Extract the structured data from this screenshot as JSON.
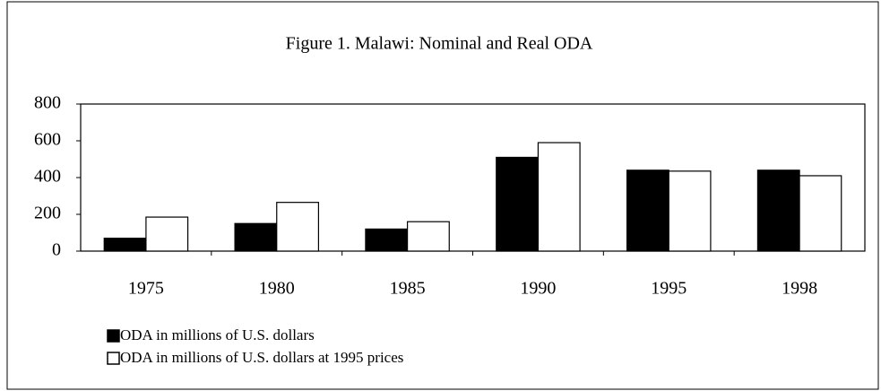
{
  "chart_data": {
    "type": "bar",
    "title": "Figure 1. Malawi: Nominal and Real ODA",
    "categories": [
      "1975",
      "1980",
      "1985",
      "1990",
      "1995",
      "1998"
    ],
    "series": [
      {
        "name": "ODA in millions of U.S. dollars",
        "color": "#000000",
        "values": [
          70,
          150,
          120,
          510,
          440,
          440
        ]
      },
      {
        "name": "ODA in millions of U.S. dollars at 1995 prices",
        "color": "#ffffff",
        "values": [
          185,
          265,
          160,
          590,
          435,
          410
        ]
      }
    ],
    "ylim": [
      0,
      800
    ],
    "yticks": [
      0,
      200,
      400,
      600,
      800
    ],
    "grid": false
  }
}
